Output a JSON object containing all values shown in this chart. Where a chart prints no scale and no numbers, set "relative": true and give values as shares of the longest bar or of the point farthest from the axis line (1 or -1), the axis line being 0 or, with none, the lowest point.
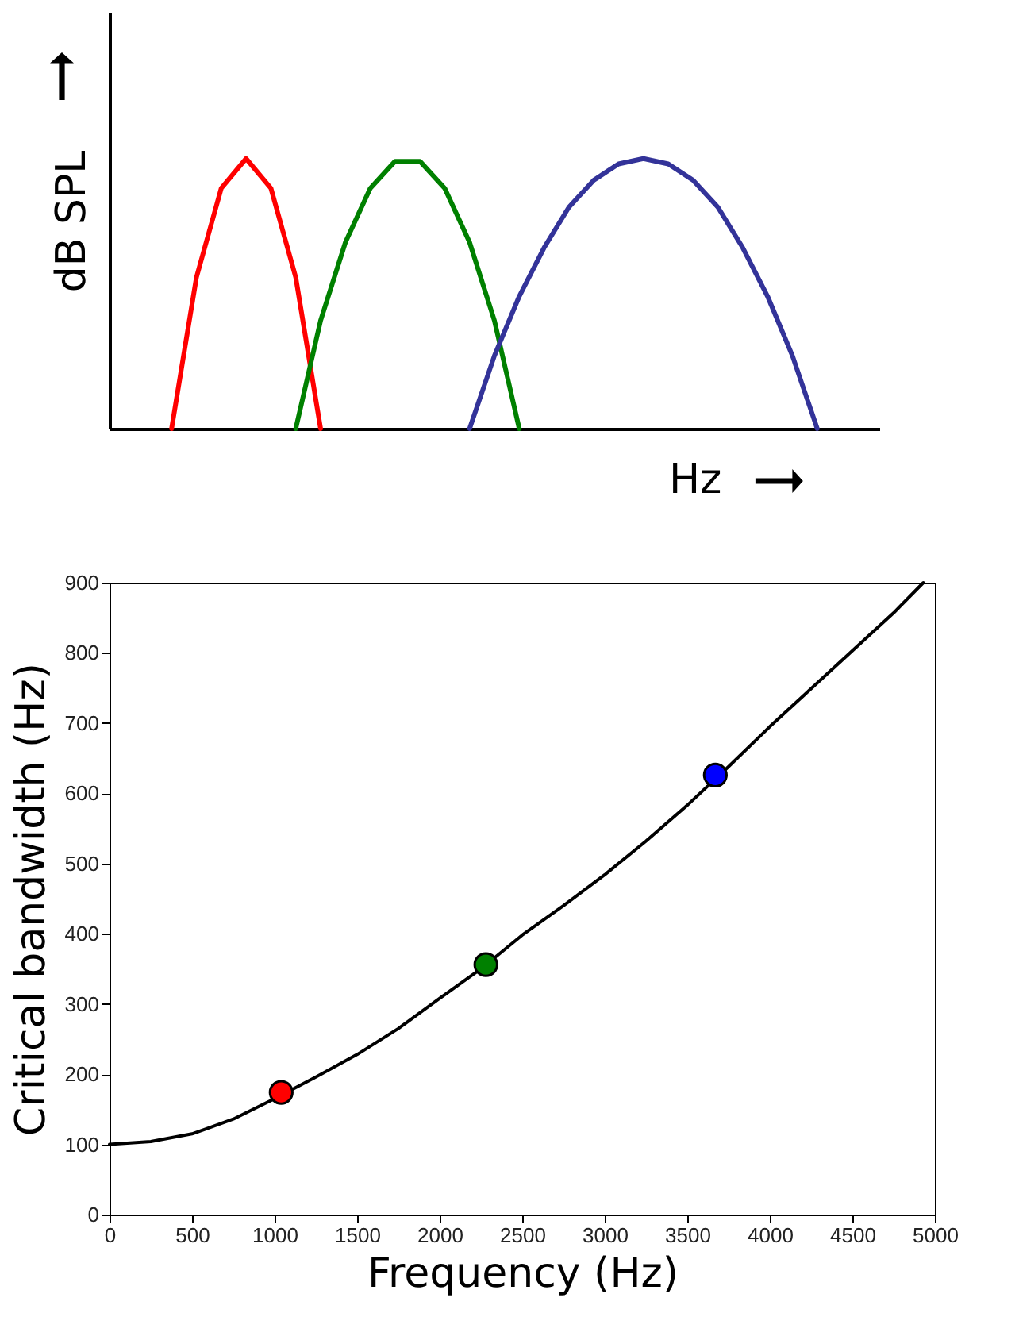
{
  "chart_data": [
    {
      "type": "line",
      "relative": true,
      "ylabel": "dB SPL",
      "xlabel": "Hz",
      "categories": [
        null,
        null,
        null,
        null,
        null,
        null,
        null,
        null,
        null,
        null,
        null,
        null,
        null,
        null,
        null,
        null,
        null,
        null,
        null,
        null,
        null,
        null,
        null,
        null,
        null,
        null,
        null,
        null,
        null,
        null,
        null
      ],
      "grid": false,
      "marker": "none",
      "line_style": "solid",
      "series": [
        {
          "color": "#ff0000",
          "values": [
            null,
            null,
            0,
            0.56,
            0.89,
            1,
            0.89,
            0.56,
            0,
            null,
            null,
            null,
            null,
            null,
            null,
            null,
            null,
            null,
            null,
            null,
            null,
            null,
            null,
            null,
            null,
            null,
            null,
            null,
            null,
            null,
            null
          ]
        },
        {
          "color": "#008000",
          "values": [
            null,
            null,
            null,
            null,
            null,
            null,
            null,
            0,
            0.4,
            0.69,
            0.89,
            0.99,
            0.99,
            0.89,
            0.69,
            0.4,
            0,
            null,
            null,
            null,
            null,
            null,
            null,
            null,
            null,
            null,
            null,
            null,
            null,
            null,
            null
          ]
        },
        {
          "color": "#333399",
          "values": [
            null,
            null,
            null,
            null,
            null,
            null,
            null,
            null,
            null,
            null,
            null,
            null,
            null,
            null,
            0,
            0.27,
            0.49,
            0.67,
            0.82,
            0.92,
            0.98,
            1,
            0.98,
            0.92,
            0.82,
            0.67,
            0.49,
            0.27,
            0,
            null,
            null
          ]
        }
      ]
    },
    {
      "type": "line",
      "xlabel": "Frequency (Hz)",
      "ylabel": "Critical bandwidth (Hz)",
      "xlim": [
        0,
        5000
      ],
      "ylim": [
        0,
        900
      ],
      "xticks": [
        0,
        500,
        1000,
        1500,
        2000,
        2500,
        3000,
        3500,
        4000,
        4500,
        5000
      ],
      "yticks": [
        0,
        100,
        200,
        300,
        400,
        500,
        600,
        700,
        800,
        900
      ],
      "grid": false,
      "series": [
        {
          "type": "line",
          "color": "#000000",
          "marker": "none",
          "line_style": "solid",
          "x": [
            0,
            250,
            500,
            750,
            1000,
            1250,
            1500,
            1750,
            2000,
            2250,
            2500,
            2750,
            3000,
            3250,
            3500,
            3750,
            4000,
            4250,
            4500,
            4750,
            4930
          ],
          "values": [
            100,
            104,
            115,
            136,
            165,
            196,
            228,
            265,
            308,
            350,
            398,
            440,
            484,
            532,
            583,
            638,
            695,
            749,
            803,
            857,
            900
          ]
        },
        {
          "type": "scatter",
          "marker": "circle",
          "x": [
            1040,
            2280,
            3670
          ],
          "values": [
            174,
            356,
            626
          ],
          "colors": [
            "#ff0000",
            "#008000",
            "#0000ff"
          ]
        }
      ]
    }
  ]
}
